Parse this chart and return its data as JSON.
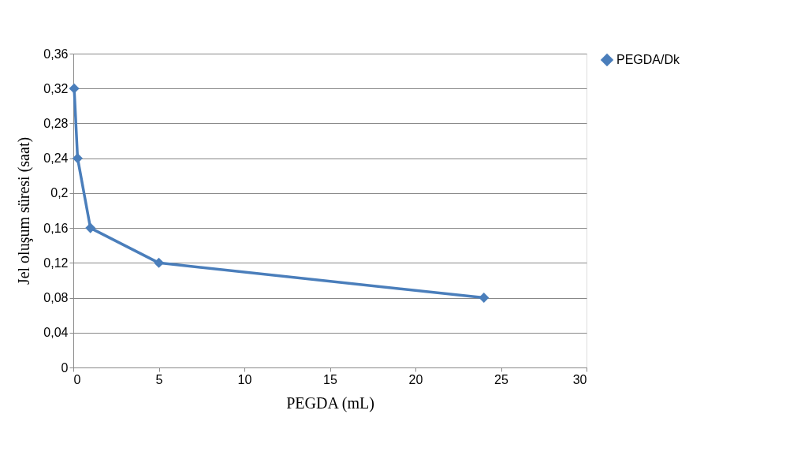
{
  "chart_data": {
    "type": "line",
    "xlabel": "PEGDA (mL)",
    "ylabel": "Jel oluşum süresi (saat)",
    "x": [
      0.05,
      0.25,
      1,
      5,
      24
    ],
    "series": [
      {
        "name": "PEGDA/Dk",
        "color": "#4a7ebb",
        "values": [
          0.32,
          0.24,
          0.16,
          0.12,
          0.08
        ]
      }
    ],
    "xlim": [
      0,
      30
    ],
    "xticks": [
      0,
      5,
      10,
      15,
      20,
      25,
      30
    ],
    "ylim": [
      0,
      0.36
    ],
    "yticks": [
      0,
      {
        "value": 0.04,
        "label": "0,04"
      },
      {
        "value": 0.08,
        "label": "0,08"
      },
      {
        "value": 0.12,
        "label": "0,12"
      },
      {
        "value": 0.16,
        "label": "0,16"
      },
      {
        "value": 0.2,
        "label": "0,2"
      },
      {
        "value": 0.24,
        "label": "0,24"
      },
      {
        "value": 0.28,
        "label": "0,28"
      },
      {
        "value": 0.32,
        "label": "0,32"
      },
      {
        "value": 0.36,
        "label": "0,36"
      }
    ],
    "grid": "y",
    "legend": "right",
    "marker": "diamond",
    "line_style": "solid"
  }
}
